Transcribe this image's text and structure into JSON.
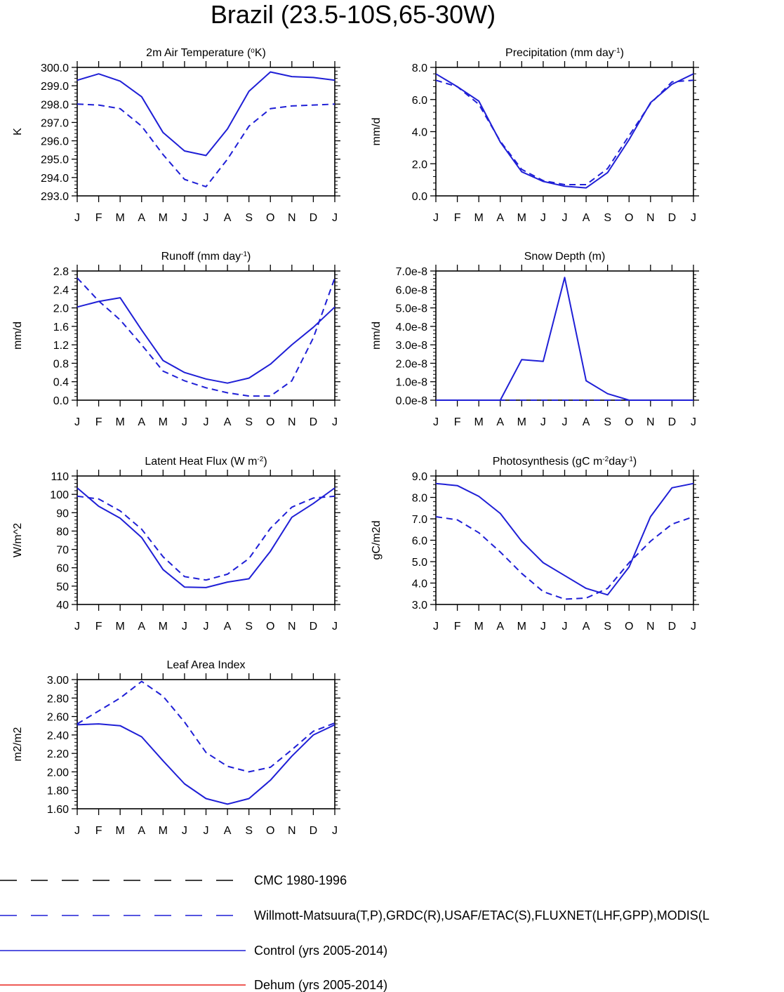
{
  "page_title": "Brazil (23.5-10S,65-30W)",
  "month_labels": [
    "J",
    "F",
    "M",
    "A",
    "M",
    "J",
    "J",
    "A",
    "S",
    "O",
    "N",
    "D",
    "J"
  ],
  "colors": {
    "series": "#1f1fd6",
    "cmc": "#000000",
    "dehum": "#e8251f"
  },
  "chart_data": [
    {
      "id": "temp",
      "type": "line",
      "title": "2m Air Temperature (",
      "title_sup": "o",
      "title_end": "K)",
      "ylabel": "K",
      "ylim": [
        293,
        300
      ],
      "yticks": [
        "293.0",
        "294.0",
        "295.0",
        "296.0",
        "297.0",
        "298.0",
        "299.0",
        "300.0"
      ],
      "series": [
        {
          "name": "Control (yrs 2005-2014)",
          "style": "solid",
          "values": [
            299.3,
            299.65,
            299.25,
            298.4,
            296.45,
            295.45,
            295.2,
            296.65,
            298.7,
            299.75,
            299.5,
            299.45,
            299.3
          ]
        },
        {
          "name": "Willmott-Matsuura(T,P),GRDC(R),USAF/ETAC(S),FLUXNET(LHF,GPP),MODIS(L",
          "style": "dashed",
          "values": [
            298.0,
            297.95,
            297.75,
            296.8,
            295.25,
            293.9,
            293.5,
            295.0,
            296.8,
            297.75,
            297.9,
            297.95,
            298.0
          ]
        }
      ]
    },
    {
      "id": "precip",
      "type": "line",
      "title": "Precipitation (mm day",
      "title_sup": "-1",
      "title_end": ")",
      "ylabel": "mm/d",
      "ylim": [
        0,
        8
      ],
      "yticks": [
        "0.0",
        "2.0",
        "4.0",
        "6.0",
        "8.0"
      ],
      "series": [
        {
          "name": "Control (yrs 2005-2014)",
          "style": "solid",
          "values": [
            7.6,
            6.8,
            5.9,
            3.35,
            1.5,
            0.9,
            0.6,
            0.5,
            1.45,
            3.5,
            5.8,
            6.95,
            7.6
          ]
        },
        {
          "name": "Willmott-Matsuura(T,P),GRDC(R),USAF/ETAC(S),FLUXNET(LHF,GPP),MODIS(L",
          "style": "dashed",
          "values": [
            7.2,
            6.8,
            5.7,
            3.4,
            1.65,
            0.95,
            0.7,
            0.7,
            1.7,
            3.75,
            5.75,
            7.1,
            7.2
          ]
        }
      ]
    },
    {
      "id": "runoff",
      "type": "line",
      "title": "Runoff (mm day",
      "title_sup": "-1",
      "title_end": ")",
      "ylabel": "mm/d",
      "ylim": [
        0,
        2.8
      ],
      "yticks": [
        "0.0",
        "0.4",
        "0.8",
        "1.2",
        "1.6",
        "2.0",
        "2.4",
        "2.8"
      ],
      "series": [
        {
          "name": "Control (yrs 2005-2014)",
          "style": "solid",
          "values": [
            2.02,
            2.14,
            2.22,
            1.52,
            0.86,
            0.6,
            0.46,
            0.37,
            0.48,
            0.78,
            1.2,
            1.58,
            2.02
          ]
        },
        {
          "name": "Willmott-Matsuura(T,P),GRDC(R),USAF/ETAC(S),FLUXNET(LHF,GPP),MODIS(L",
          "style": "dashed",
          "values": [
            2.65,
            2.15,
            1.74,
            1.2,
            0.63,
            0.42,
            0.27,
            0.16,
            0.09,
            0.09,
            0.42,
            1.35,
            2.65
          ]
        }
      ]
    },
    {
      "id": "snow",
      "type": "line",
      "title": "Snow Depth (m)",
      "title_sup": "",
      "title_end": "",
      "ylabel": "mm/d",
      "ylim": [
        0,
        7e-08
      ],
      "yticks": [
        "0.0e-8",
        "1.0e-8",
        "2.0e-8",
        "3.0e-8",
        "4.0e-8",
        "5.0e-8",
        "6.0e-8",
        "7.0e-8"
      ],
      "series": [
        {
          "name": "Control (yrs 2005-2014)",
          "style": "solid",
          "values": [
            0,
            0,
            0,
            0,
            2.2e-08,
            2.1e-08,
            6.65e-08,
            1.05e-08,
            3.5e-09,
            0,
            0,
            0,
            0
          ]
        },
        {
          "name": "Willmott-Matsuura(T,P),GRDC(R),USAF/ETAC(S),FLUXNET(LHF,GPP),MODIS(L",
          "style": "dashed",
          "values": [
            0,
            0,
            0,
            0,
            0,
            0,
            0,
            0,
            0,
            0,
            0,
            0,
            0
          ]
        }
      ]
    },
    {
      "id": "lhf",
      "type": "line",
      "title": "Latent Heat Flux (W m",
      "title_sup": "-2",
      "title_end": ")",
      "ylabel": "W/m^2",
      "ylim": [
        40,
        110
      ],
      "yticks": [
        "40",
        "50",
        "60",
        "70",
        "80",
        "90",
        "100",
        "110"
      ],
      "series": [
        {
          "name": "Control (yrs 2005-2014)",
          "style": "solid",
          "values": [
            103.5,
            93.5,
            87,
            76.5,
            59,
            49.5,
            49.2,
            52.2,
            54,
            69,
            87.5,
            95,
            103.5
          ]
        },
        {
          "name": "Willmott-Matsuura(T,P),GRDC(R),USAF/ETAC(S),FLUXNET(LHF,GPP),MODIS(L",
          "style": "dashed",
          "values": [
            99,
            97.5,
            91,
            81,
            66,
            55.2,
            53.3,
            56.5,
            65,
            81.5,
            93,
            98,
            99
          ]
        }
      ]
    },
    {
      "id": "gpp",
      "type": "line",
      "title": "Photosynthesis (gC m",
      "title_sup": "-2",
      "title_mid": "day",
      "title_sup2": "-1",
      "title_end": ")",
      "ylabel": "gC/m2d",
      "ylim": [
        3,
        9
      ],
      "yticks": [
        "3.0",
        "4.0",
        "5.0",
        "6.0",
        "7.0",
        "8.0",
        "9.0"
      ],
      "series": [
        {
          "name": "Control (yrs 2005-2014)",
          "style": "solid",
          "values": [
            8.65,
            8.55,
            8.05,
            7.25,
            5.95,
            4.95,
            4.35,
            3.75,
            3.45,
            4.75,
            7.1,
            8.45,
            8.65
          ]
        },
        {
          "name": "Willmott-Matsuura(T,P),GRDC(R),USAF/ETAC(S),FLUXNET(LHF,GPP),MODIS(L",
          "style": "dashed",
          "values": [
            7.1,
            6.95,
            6.35,
            5.45,
            4.45,
            3.6,
            3.25,
            3.3,
            3.75,
            4.95,
            5.95,
            6.75,
            7.1
          ]
        }
      ]
    },
    {
      "id": "lai",
      "type": "line",
      "title": "Leaf Area Index",
      "title_sup": "",
      "title_end": "",
      "ylabel": "m2/m2",
      "ylim": [
        1.6,
        3.0
      ],
      "yticks": [
        "1.60",
        "1.80",
        "2.00",
        "2.20",
        "2.40",
        "2.60",
        "2.80",
        "3.00"
      ],
      "series": [
        {
          "name": "Control (yrs 2005-2014)",
          "style": "solid",
          "values": [
            2.51,
            2.52,
            2.5,
            2.38,
            2.12,
            1.87,
            1.71,
            1.65,
            1.71,
            1.91,
            2.17,
            2.4,
            2.51
          ]
        },
        {
          "name": "Willmott-Matsuura(T,P),GRDC(R),USAF/ETAC(S),FLUXNET(LHF,GPP),MODIS(L",
          "style": "dashed",
          "values": [
            2.52,
            2.66,
            2.8,
            2.98,
            2.82,
            2.54,
            2.21,
            2.06,
            2.0,
            2.05,
            2.24,
            2.44,
            2.53
          ]
        }
      ]
    }
  ],
  "legend": [
    {
      "label": "CMC 1980-1996",
      "style": "dashed",
      "color_key": "cmc"
    },
    {
      "label": "Willmott-Matsuura(T,P),GRDC(R),USAF/ETAC(S),FLUXNET(LHF,GPP),MODIS(L",
      "style": "dashed",
      "color_key": "series"
    },
    {
      "label": "Control (yrs 2005-2014)",
      "style": "solid",
      "color_key": "series"
    },
    {
      "label": "Dehum (yrs 2005-2014)",
      "style": "solid",
      "color_key": "dehum"
    }
  ]
}
